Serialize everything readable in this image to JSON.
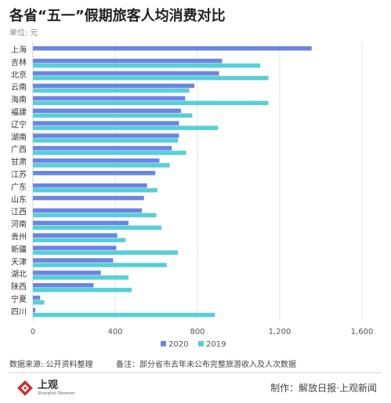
{
  "header": {
    "title": "各省“五一”假期旅客人均消费对比",
    "unit": "单位: 元"
  },
  "footer": {
    "source": "数据来源: 公开资料整理",
    "note": "备注：部分省市去年未公布完整旅游收入及人次数据",
    "credit": "制作：解放日报·上观新闻",
    "logo_text": "上观",
    "logo_subtext": "Shanghai Observer"
  },
  "colors": {
    "series_2020": "#6b84e2",
    "series_2019": "#56cfd8",
    "grid": "#e6e6e6",
    "logo_red": "#c8312b"
  },
  "chart_data": {
    "type": "bar",
    "orientation": "horizontal",
    "categories": [
      "上海",
      "吉林",
      "北京",
      "云南",
      "海南",
      "福建",
      "辽宁",
      "湖南",
      "广西",
      "甘肃",
      "江苏",
      "广东",
      "山东",
      "江西",
      "河南",
      "贵州",
      "新疆",
      "天津",
      "湖北",
      "陕西",
      "宁夏",
      "四川"
    ],
    "series": [
      {
        "name": "2020",
        "values": [
          1355,
          920,
          905,
          785,
          740,
          720,
          710,
          710,
          675,
          615,
          595,
          555,
          540,
          530,
          465,
          410,
          405,
          390,
          330,
          295,
          35,
          12
        ]
      },
      {
        "name": "2019",
        "values": [
          null,
          1105,
          1145,
          760,
          1145,
          775,
          900,
          705,
          745,
          665,
          null,
          605,
          null,
          600,
          625,
          450,
          705,
          650,
          465,
          480,
          55,
          885
        ]
      }
    ],
    "xlim": [
      0,
      1600
    ],
    "xticks": [
      "0",
      "400",
      "800",
      "1,200",
      "1,600"
    ],
    "xlabel": "",
    "ylabel": "",
    "grid": true,
    "legend": "bottom"
  }
}
